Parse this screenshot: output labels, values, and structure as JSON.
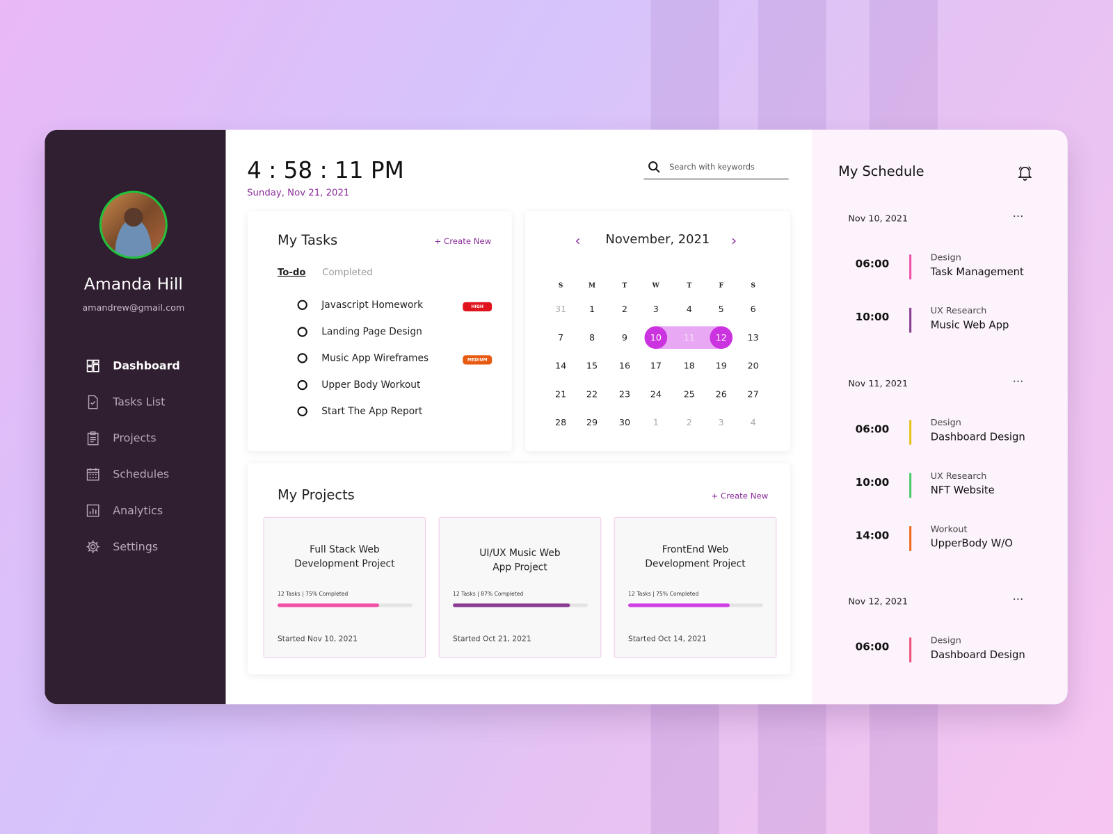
{
  "user": {
    "name": "Amanda Hill",
    "email": "amandrew@gmail.com"
  },
  "nav": [
    {
      "label": "Dashboard",
      "icon": "dashboard-grid-icon",
      "active": true
    },
    {
      "label": "Tasks List",
      "icon": "task-file-icon"
    },
    {
      "label": "Projects",
      "icon": "clipboard-icon"
    },
    {
      "label": "Schedules",
      "icon": "calendar-icon"
    },
    {
      "label": "Analytics",
      "icon": "chart-icon"
    },
    {
      "label": "Settings",
      "icon": "gear-icon"
    }
  ],
  "header": {
    "time": "4 : 58 : 11 PM",
    "date": "Sunday, Nov 21, 2021",
    "search_placeholder": "Search with keywords"
  },
  "tasks": {
    "title": "My Tasks",
    "create": "+ Create New",
    "tabs": [
      "To-do",
      "Completed"
    ],
    "active_tab": "To-do",
    "items": [
      {
        "label": "Javascript Homework",
        "badge": "HIGH",
        "badge_color": "#e0141c"
      },
      {
        "label": "Landing Page Design"
      },
      {
        "label": "Music App Wireframes",
        "badge": "MEDIUM",
        "badge_color": "#e85a12"
      },
      {
        "label": "Upper Body Workout"
      },
      {
        "label": "Start The App Report"
      }
    ]
  },
  "calendar": {
    "month": "November, 2021",
    "weekdays": [
      "S",
      "M",
      "T",
      "W",
      "T",
      "F",
      "S"
    ],
    "weeks": [
      [
        "31",
        "1",
        "2",
        "3",
        "4",
        "5",
        "6"
      ],
      [
        "7",
        "8",
        "9",
        "10",
        "11",
        "12",
        "13"
      ],
      [
        "14",
        "15",
        "16",
        "17",
        "18",
        "19",
        "20"
      ],
      [
        "21",
        "22",
        "23",
        "24",
        "25",
        "26",
        "27"
      ],
      [
        "28",
        "29",
        "30",
        "1",
        "2",
        "3",
        "4"
      ]
    ],
    "range_start": "10",
    "range_end": "12",
    "accent": "#cc33e0",
    "range_color": "#e8a8f4"
  },
  "projects": {
    "title": "My Projects",
    "create": "+ Create New",
    "items": [
      {
        "title_lines": [
          "Full Stack Web",
          "Development Project"
        ],
        "meta": "12 Tasks  |  75% Completed",
        "progress": 75,
        "color": "#f050a8",
        "started": "Started Nov 10, 2021"
      },
      {
        "title_lines": [
          "UI/UX Music Web",
          "App Project"
        ],
        "meta": "12 Tasks  |  87% Completed",
        "progress": 87,
        "color": "#8a3c92",
        "started": "Started Oct 21, 2021"
      },
      {
        "title_lines": [
          "FrontEnd Web",
          "Development Project"
        ],
        "meta": "12 Tasks  |  75% Completed",
        "progress": 75,
        "color": "#d23ee6",
        "started": "Started Oct 14, 2021"
      }
    ]
  },
  "schedule": {
    "title": "My Schedule",
    "days": [
      {
        "date": "Nov 10, 2021",
        "events": [
          {
            "time": "06:00",
            "category": "Design",
            "name": "Task Management",
            "color": "#f050a8"
          },
          {
            "time": "10:00",
            "category": "UX Research",
            "name": "Music Web App",
            "color": "#8a3c92"
          }
        ]
      },
      {
        "date": "Nov 11, 2021",
        "events": [
          {
            "time": "06:00",
            "category": "Design",
            "name": "Dashboard Design",
            "color": "#e8c21f"
          },
          {
            "time": "10:00",
            "category": "UX Research",
            "name": "NFT Website",
            "color": "#4cc96b"
          },
          {
            "time": "14:00",
            "category": "Workout",
            "name": "UpperBody W/O",
            "color": "#f06a1f"
          }
        ]
      },
      {
        "date": "Nov 12, 2021",
        "events": [
          {
            "time": "06:00",
            "category": "Design",
            "name": "Dashboard Design",
            "color": "#f0507a"
          }
        ]
      }
    ]
  }
}
